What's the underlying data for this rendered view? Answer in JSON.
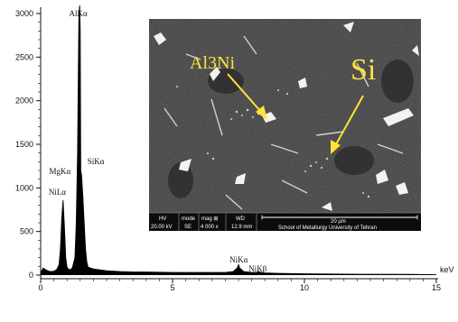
{
  "chart_data": {
    "type": "line",
    "title": "",
    "xlabel": "keV",
    "ylabel": "",
    "xlim": [
      0,
      15
    ],
    "ylim": [
      0,
      3000
    ],
    "x_ticks": [
      0,
      5,
      10,
      15
    ],
    "y_ticks": [
      0,
      500,
      1000,
      1500,
      2000,
      2500,
      3000
    ],
    "grid": false,
    "series": [
      {
        "x": [
          0.0,
          0.1,
          0.2,
          0.3,
          0.4,
          0.5,
          0.6,
          0.7,
          0.75,
          0.8,
          0.85,
          0.9,
          0.95,
          1.0,
          1.05,
          1.1,
          1.2,
          1.3,
          1.35,
          1.4,
          1.45,
          1.48,
          1.5,
          1.52,
          1.55,
          1.6,
          1.65,
          1.7,
          1.75,
          1.8,
          2.0,
          2.5,
          3.0,
          3.5,
          4.0,
          5.0,
          6.0,
          7.0,
          7.3,
          7.45,
          7.5,
          7.55,
          7.7,
          8.0,
          8.2,
          8.26,
          8.35,
          8.5,
          9.0,
          10.0,
          12.0,
          14.0,
          15.0
        ],
        "y": [
          30,
          80,
          60,
          45,
          40,
          45,
          60,
          120,
          300,
          650,
          860,
          560,
          200,
          90,
          70,
          60,
          80,
          200,
          600,
          1400,
          3000,
          3200,
          2800,
          1200,
          1150,
          900,
          600,
          300,
          150,
          90,
          70,
          50,
          40,
          35,
          35,
          30,
          30,
          30,
          40,
          80,
          120,
          80,
          40,
          30,
          30,
          40,
          30,
          25,
          20,
          15,
          10,
          8,
          5
        ]
      }
    ],
    "peak_labels": [
      {
        "text": "AlKα",
        "x": 1.49
      },
      {
        "text": "MgKα",
        "x": 1.25
      },
      {
        "text": "SiKα",
        "x": 1.74
      },
      {
        "text": "NiLα",
        "x": 0.85
      },
      {
        "text": "NiKα",
        "x": 7.47
      },
      {
        "text": "NiKβ",
        "x": 8.26
      }
    ]
  },
  "inset": {
    "label_al3ni": "Al3Ni",
    "label_si": "Si",
    "info_bar": {
      "headers": [
        "HV",
        "mode",
        "mag ⊞",
        "WD"
      ],
      "values": [
        "20.00 kV",
        "SE",
        "4 000 x",
        "12.9 mm"
      ],
      "scale_text": "20 µm",
      "institution": "School of Metallurgy University of Tehran"
    }
  },
  "colors": {
    "callout": "#ffe43a",
    "sem_background": "#3a3a3a",
    "info_bar": "#0c0c0c"
  }
}
